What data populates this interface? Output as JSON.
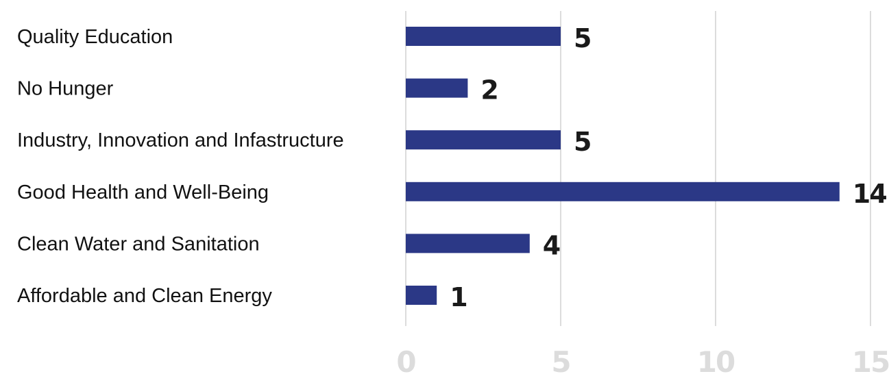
{
  "chart_data": {
    "type": "bar",
    "orientation": "horizontal",
    "categories": [
      "Quality Education",
      "No Hunger",
      "Industry, Innovation and Infastructure",
      "Good Health and Well-Being",
      "Clean Water and Sanitation",
      "Affordable and Clean Energy"
    ],
    "values": [
      5,
      2,
      5,
      14,
      4,
      1
    ],
    "data_labels": [
      "5",
      "2",
      "5",
      "14",
      "4",
      "1"
    ],
    "title": "",
    "xlabel": "",
    "ylabel": "",
    "xlim": [
      0,
      15
    ],
    "x_ticks": [
      "0",
      "5",
      "10",
      "15"
    ],
    "grid": "vertical",
    "legend": "none",
    "colors": {
      "bar": "#2b3886",
      "grid": "#dcdcdc",
      "tick_label": "#dcdcdc",
      "value_label": "#1a1a1a",
      "category_label": "#111111"
    }
  }
}
